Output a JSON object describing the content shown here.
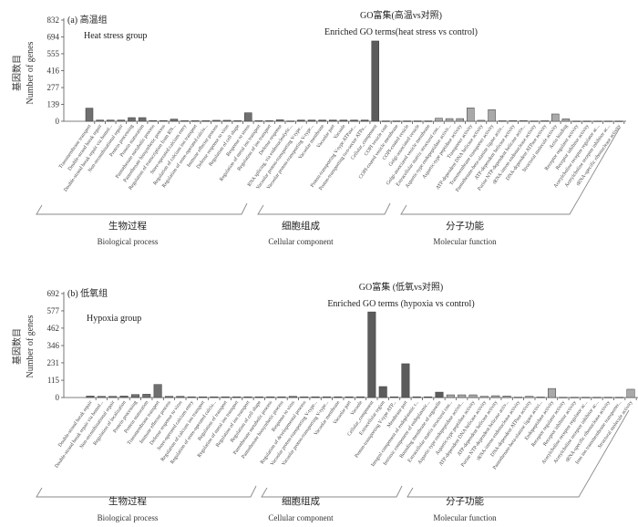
{
  "chart_data": [
    {
      "type": "bar",
      "panel_label": "(a) 高温组",
      "panel_label_en": "Heat stress group",
      "title": "GO富集(高温vs对照)",
      "subtitle": "Enriched GO terms(heat stress vs control)",
      "ylabel_cn": "基因数目",
      "ylabel": "Number of genes",
      "ylim": [
        0,
        832
      ],
      "yticks": [
        0,
        139,
        277,
        416,
        555,
        694,
        832
      ],
      "grid": false,
      "groups": [
        {
          "name_cn": "生物过程",
          "name_en": "Biological process",
          "count": 20,
          "color": "#6f6f6f"
        },
        {
          "name_cn": "细胞组成",
          "name_en": "Cellular component",
          "count": 13,
          "color": "#5c5c5c"
        },
        {
          "name_cn": "分子功能",
          "name_en": "Molecular function",
          "count": 18,
          "color": "#a9a9a9"
        }
      ],
      "categories": [
        "Transmembrane transport",
        "Double-strand break repair",
        "Double-strand break repair via homol...",
        "Non-recombinational repair",
        "Protein processing",
        "Protein maturation",
        "Pantothenate metabolic process",
        "Pantothenate biosynthetic process",
        "Regulation of transcription from RN...",
        "Store-operated calcium entry",
        "Regulation of calcium ion transport",
        "Regulation of store-operated calciu...",
        "Immune effector process",
        "Defense response to virus",
        "Regulation of cell shape",
        "Response to stress",
        "Regulation of metal ion transport",
        "Regulation of ion transport",
        "Defense response",
        "RNA splicing, via endonucleolytic...",
        "Vacuolar proton-transporting V-type...",
        "Vacuolar proton-transporting V-type...",
        "Vacuolar membrane",
        "Vacuolar part",
        "Vacuole",
        "Proton-transporting V-type ATPase...",
        "Proton-transporting two-sector ATPa...",
        "Cellular_component",
        "COPI vesicle coat",
        "COPI-coated vesicle membrane",
        "COPI-coated vesicle",
        "Golgi-associated vesicle",
        "Golgi-associated vesicle membrane",
        "Extracellular matrix structural con...",
        "Aspartic-type endopeptidase activit...",
        "Aspartic-type peptidase activity",
        "Transporter activity",
        "ATP-dependent DNA helicase activity",
        "Transmembrane transporter activity",
        "Pantothenate-beta-alanine ligase activ...",
        "ATP-dependent helicase activity",
        "Purine NTP-dependent helicase activ...",
        "tRNA-intron endonuclease activity",
        "DNA-dependent ATPase activity",
        "Structural molecule activity",
        "Actin binding",
        "Receptor regulator activity",
        "Receptor inhibitor activity",
        "Acetylcholine receptor regulator ac...",
        "Acetylcholine receptor inhibitor ac...",
        "tRNA-specific ribonuclease activity"
      ],
      "values": [
        108,
        10,
        10,
        10,
        30,
        30,
        6,
        6,
        18,
        5,
        5,
        5,
        8,
        8,
        5,
        70,
        5,
        5,
        12,
        3,
        10,
        10,
        10,
        10,
        10,
        10,
        10,
        660,
        3,
        3,
        3,
        3,
        3,
        25,
        22,
        22,
        110,
        8,
        95,
        5,
        6,
        6,
        3,
        5,
        60,
        20,
        2,
        2,
        2,
        2,
        2
      ]
    },
    {
      "type": "bar",
      "panel_label": "(b) 低氧组",
      "panel_label_en": "Hypoxia group",
      "title": "GO富集 (低氧vs对照)",
      "subtitle": "Enriched GO terms (hypoxia vs control)",
      "ylabel_cn": "基因数目",
      "ylabel": "Number of genes",
      "ylim": [
        0,
        692
      ],
      "yticks": [
        0,
        115,
        231,
        346,
        462,
        577,
        692
      ],
      "grid": false,
      "groups": [
        {
          "name_cn": "生物过程",
          "name_en": "Biological process",
          "count": 20,
          "color": "#6f6f6f"
        },
        {
          "name_cn": "细胞组成",
          "name_en": "Cellular component",
          "count": 12,
          "color": "#5c5c5c"
        },
        {
          "name_cn": "分子功能",
          "name_en": "Molecular function",
          "count": 17,
          "color": "#a9a9a9"
        }
      ],
      "categories": [
        "Double-strand break repair",
        "Double-strand break repair via homol...",
        "Non-recombinational repair",
        "Regulation of localization",
        "Protein processing",
        "Protein maturation",
        "Transmembrane transport",
        "Immune effector process",
        "Defense response to virus",
        "Store-operated calcium entry",
        "Regulation of calcium ion transport",
        "Regulation of store-operated calciu...",
        "Regulation of transport",
        "Regulation of metal ion transport",
        "Regulation of ion transport",
        "Regulation of cell shape",
        "Pantothenate metabolic process",
        "Pantothenate biosynthetic process",
        "Response to virus",
        "Regulation of developmental process",
        "Vacuolar proton-transporting V-type...",
        "Vacuolar proton-transporting V-type...",
        "Vacuolar membrane",
        "Vacuolar part",
        "Vacuole",
        "Cellular_component",
        "Extracellular region",
        "Proton-transporting V-type ATP...",
        "Membrane part",
        "Integral component of endoplasmic r...",
        "Intrinsic component of endoplasmic...",
        "Bounding membrane of organelle",
        "Extracellular matrix structural con...",
        "Aspartic-type endopeptidase activit...",
        "Aspartic-type peptidase activity",
        "ATP-dependent DNA helicase activity",
        "ATP-dependent helicase activity",
        "Purine NTP-dependent helicase activ...",
        "tRNA-intron endonuclease activity",
        "DNA-dependent ATPase activity",
        "Pantothenate-beta-alanine ligase activi...",
        "Endopeptidase activity",
        "Receptor regulator activity",
        "Receptor inhibitor activity",
        "Acetylcholine receptor regulator ac...",
        "Acetylcholine receptor inhibitor ac...",
        "tRNA-specific ribonuclease activity",
        "Iron ion transmembrane transporter...",
        "Structural molecule activity"
      ],
      "values": [
        10,
        8,
        8,
        10,
        20,
        22,
        87,
        8,
        8,
        5,
        5,
        5,
        5,
        5,
        5,
        5,
        5,
        5,
        8,
        5,
        5,
        5,
        5,
        5,
        5,
        570,
        73,
        5,
        225,
        5,
        5,
        36,
        18,
        18,
        18,
        8,
        12,
        10,
        3,
        8,
        4,
        60,
        2,
        2,
        2,
        2,
        2,
        2,
        55
      ]
    }
  ]
}
